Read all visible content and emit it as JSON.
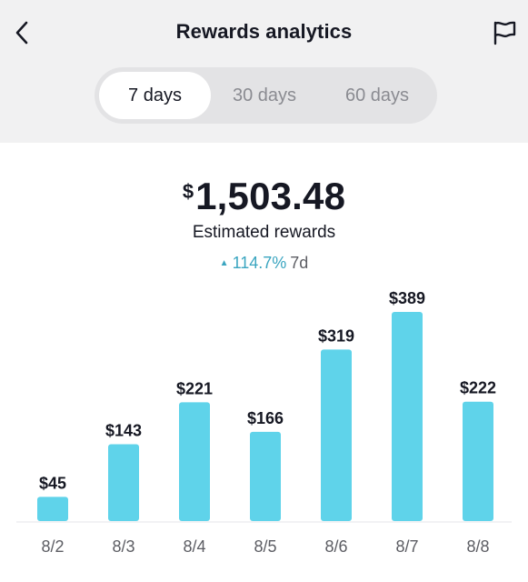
{
  "header": {
    "title": "Rewards analytics",
    "back_icon": "chevron-left-icon",
    "flag_icon": "flag-icon"
  },
  "tabs": [
    {
      "label": "7 days",
      "active": true
    },
    {
      "label": "30 days",
      "active": false
    },
    {
      "label": "60 days",
      "active": false
    }
  ],
  "summary": {
    "currency": "$",
    "amount": "1,503.48",
    "label": "Estimated rewards",
    "change": "114.7%",
    "period": "7d"
  },
  "colors": {
    "bar": "#5fd3ea",
    "accent": "#3aa5c0",
    "background_top": "#f1f1f2"
  },
  "chart_data": {
    "type": "bar",
    "categories": [
      "8/2",
      "8/3",
      "8/4",
      "8/5",
      "8/6",
      "8/7",
      "8/8"
    ],
    "values": [
      45,
      143,
      221,
      166,
      319,
      389,
      222
    ],
    "value_labels": [
      "$45",
      "$143",
      "$221",
      "$166",
      "$319",
      "$389",
      "$222"
    ],
    "ylim": [
      0,
      389
    ],
    "grid": false
  }
}
